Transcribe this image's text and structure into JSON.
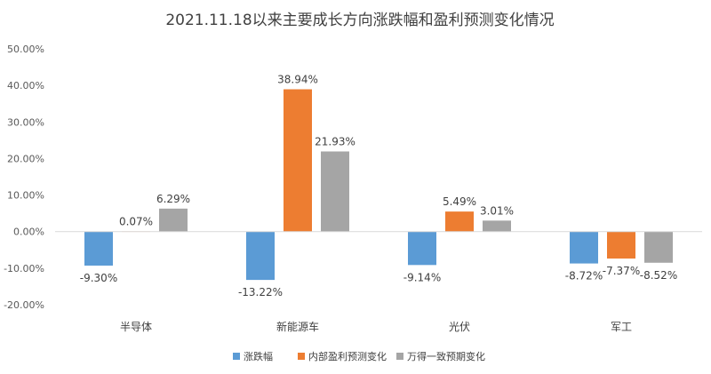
{
  "chart_data": {
    "type": "bar",
    "title": "2021.11.18以来主要成长方向涨跌幅和盈利预测变化情况",
    "categories": [
      "半导体",
      "新能源车",
      "光伏",
      "军工"
    ],
    "series": [
      {
        "name": "涨跌幅",
        "values": [
          -9.3,
          -13.22,
          -9.14,
          -8.72
        ],
        "labels": [
          "-9.30%",
          "-13.22%",
          "-9.14%",
          "-8.72%"
        ]
      },
      {
        "name": "内部盈利预测变化",
        "values": [
          0.07,
          38.94,
          5.49,
          -7.37
        ],
        "labels": [
          "0.07%",
          "38.94%",
          "5.49%",
          "-7.37%"
        ]
      },
      {
        "name": "万得一致预期变化",
        "values": [
          6.29,
          21.93,
          3.01,
          -8.52
        ],
        "labels": [
          "6.29%",
          "21.93%",
          "3.01%",
          "-8.52%"
        ]
      }
    ],
    "ylim": [
      -20,
      50
    ],
    "yticks": [
      50,
      40,
      30,
      20,
      10,
      0,
      -10,
      -20
    ],
    "ytick_labels": [
      "50.00%",
      "40.00%",
      "30.00%",
      "20.00%",
      "10.00%",
      "0.00%",
      "-10.00%",
      "-20.00%"
    ],
    "grid": false,
    "legend_position": "bottom",
    "colors": [
      "#5B9BD5",
      "#ED7D31",
      "#A5A5A5"
    ]
  }
}
